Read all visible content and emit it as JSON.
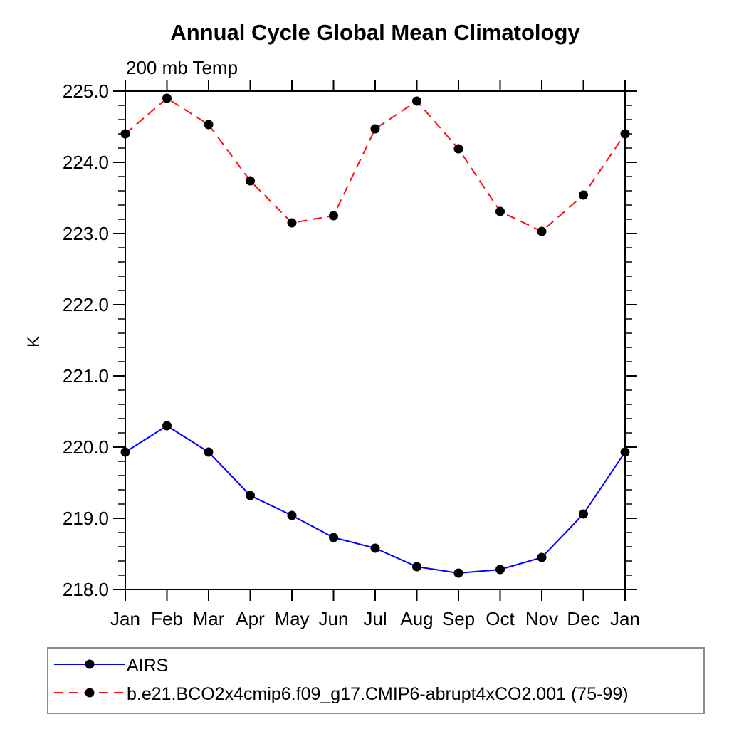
{
  "chart_data": {
    "type": "line",
    "title": "Annual Cycle Global Mean Climatology",
    "subtitle": "200 mb Temp",
    "ylabel": "K",
    "categories": [
      "Jan",
      "Feb",
      "Mar",
      "Apr",
      "May",
      "Jun",
      "Jul",
      "Aug",
      "Sep",
      "Oct",
      "Nov",
      "Dec",
      "Jan"
    ],
    "ylim": [
      218.0,
      225.0
    ],
    "ytick_interval": 1.0,
    "yminor_interval": 0.2,
    "ytick_labels": [
      "218.0",
      "219.0",
      "220.0",
      "221.0",
      "222.0",
      "223.0",
      "224.0",
      "225.0"
    ],
    "grid": false,
    "legend_position": "bottom",
    "axis_color": "#000000",
    "marker_color": "#000000",
    "series": [
      {
        "name": "AIRS",
        "color": "#0000ff",
        "style": "solid",
        "marker": "black-dot",
        "values": [
          219.93,
          220.3,
          219.93,
          219.32,
          219.04,
          218.73,
          218.58,
          218.32,
          218.23,
          218.28,
          218.45,
          219.06,
          219.93
        ]
      },
      {
        "name": "b.e21.BCO2x4cmip6.f09_g17.CMIP6-abrupt4xCO2.001 (75-99)",
        "color": "#ff0f0f",
        "style": "dashed",
        "marker": "black-dot",
        "values": [
          224.4,
          224.9,
          224.53,
          223.74,
          223.15,
          223.25,
          224.47,
          224.86,
          224.19,
          223.31,
          223.03,
          223.54,
          224.4
        ]
      }
    ]
  }
}
